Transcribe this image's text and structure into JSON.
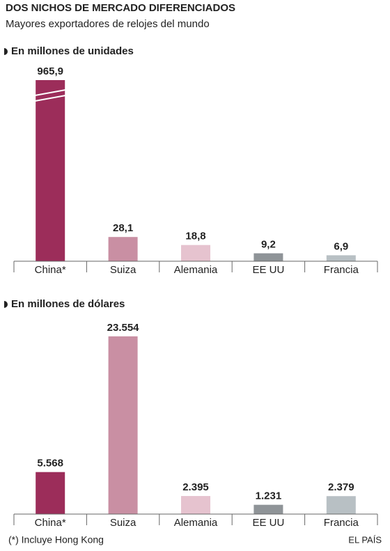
{
  "header": {
    "title": "DOS NICHOS DE MERCADO DIFERENCIADOS",
    "subtitle": "Mayores exportadores de relojes del mundo"
  },
  "chart_data": [
    {
      "type": "bar",
      "title": "En millones de unidades",
      "categories": [
        "China*",
        "Suiza",
        "Alemania",
        "EE UU",
        "Francia"
      ],
      "values": [
        965.9,
        28.1,
        18.8,
        9.2,
        6.9
      ],
      "value_labels": [
        "965,9",
        "28,1",
        "18,8",
        "9,2",
        "6,9"
      ],
      "colors": [
        "#9c2d5a",
        "#c98fa3",
        "#e6c3cf",
        "#8f9498",
        "#b8c0c4"
      ],
      "ylim": [
        0,
        210
      ],
      "axis_break": true
    },
    {
      "type": "bar",
      "title": "En millones de dólares",
      "categories": [
        "China*",
        "Suiza",
        "Alemania",
        "EE UU",
        "Francia"
      ],
      "values": [
        5568,
        23554,
        2395,
        1231,
        2379
      ],
      "value_labels": [
        "5.568",
        "23.554",
        "2.395",
        "1.231",
        "2.379"
      ],
      "colors": [
        "#9c2d5a",
        "#c98fa3",
        "#e6c3cf",
        "#8f9498",
        "#b8c0c4"
      ],
      "ylim": [
        0,
        24000
      ],
      "axis_break": false
    }
  ],
  "footer": {
    "note": "(*) Incluye Hong Kong",
    "source": "EL PAÍS"
  }
}
